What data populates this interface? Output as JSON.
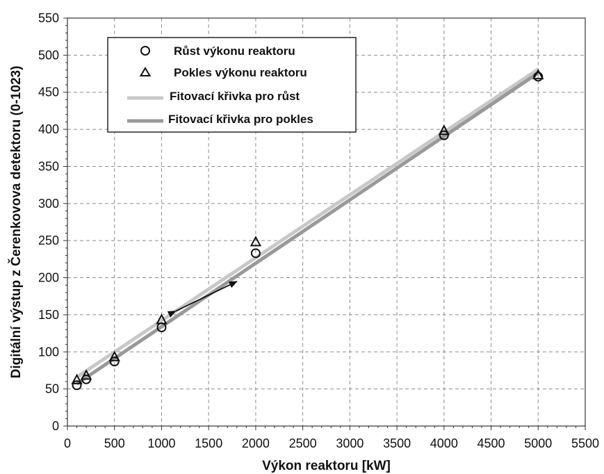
{
  "chart_data": {
    "type": "scatter",
    "xlabel": "Výkon reaktoru [kW]",
    "ylabel": "Digitální výstup z Čerenkovova detektoru (0-1023)",
    "xlim": [
      0,
      5500
    ],
    "ylim": [
      0,
      550
    ],
    "x_ticks": [
      0,
      500,
      1000,
      1500,
      2000,
      2500,
      3000,
      3500,
      4000,
      4500,
      5000,
      5500
    ],
    "y_ticks": [
      0,
      50,
      100,
      150,
      200,
      250,
      300,
      350,
      400,
      450,
      500,
      550
    ],
    "x_tick_labels": [
      "0",
      "500",
      "1000",
      "1500",
      "2000",
      "2500",
      "3000",
      "3500",
      "4000",
      "4500",
      "5000",
      "5500"
    ],
    "y_tick_labels": [
      "0",
      "50",
      "100",
      "150",
      "200",
      "250",
      "300",
      "350",
      "400",
      "450",
      "500",
      "550"
    ],
    "grid": true,
    "legend_position": "top-left",
    "series": [
      {
        "name": "Růst výkonu reaktoru",
        "kind": "points",
        "marker": "circle",
        "x": [
          100,
          200,
          500,
          1000,
          2000,
          4000,
          5000
        ],
        "y": [
          55,
          63,
          87,
          133,
          233,
          392,
          471
        ]
      },
      {
        "name": "Pokles výkonu reaktoru",
        "kind": "points",
        "marker": "triangle",
        "x": [
          100,
          200,
          500,
          1000,
          2000,
          4000,
          5000
        ],
        "y": [
          62,
          68,
          93,
          143,
          248,
          398,
          473
        ]
      },
      {
        "name": "Fitovací křivka pro růst",
        "kind": "line",
        "color": "#c8c8c8",
        "x": [
          100,
          5000
        ],
        "y": [
          66,
          481
        ]
      },
      {
        "name": "Fitovací křivka pro pokles",
        "kind": "line",
        "color": "#999999",
        "x": [
          100,
          5000
        ],
        "y": [
          57,
          476
        ]
      }
    ],
    "annotations": [
      {
        "type": "double-arrow",
        "from": [
          1150,
          155
        ],
        "to": [
          1800,
          195
        ]
      }
    ]
  }
}
